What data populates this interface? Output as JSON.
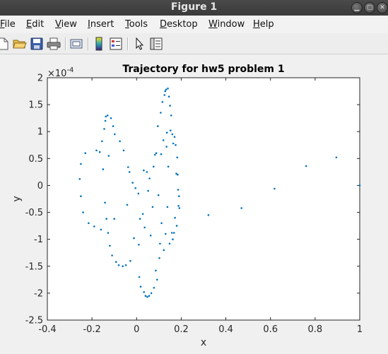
{
  "window": {
    "title": "Figure 1"
  },
  "menu": {
    "items": [
      {
        "key": "F",
        "rest": "ile"
      },
      {
        "key": "E",
        "rest": "dit"
      },
      {
        "key": "V",
        "rest": "iew"
      },
      {
        "key": "I",
        "rest": "nsert"
      },
      {
        "key": "T",
        "rest": "ools"
      },
      {
        "key": "D",
        "rest": "esktop"
      },
      {
        "key": "W",
        "rest": "indow"
      },
      {
        "key": "H",
        "rest": "elp"
      }
    ]
  },
  "toolbar": {
    "icons": [
      "new-figure-icon",
      "open-file-icon",
      "save-icon",
      "print-icon",
      "link-plot-icon",
      "insert-colorbar-icon",
      "insert-legend-icon",
      "edit-plot-arrow-icon",
      "property-inspector-icon"
    ]
  },
  "colors": {
    "marker": "#0072bd",
    "axis": "#262626",
    "plot_bg": "#ffffff",
    "figure_bg": "#f0f0f0"
  },
  "chart_data": {
    "type": "scatter",
    "title": "Trajectory for hw5 problem 1",
    "xlabel": "x",
    "ylabel": "y",
    "xlim": [
      -0.4,
      1.0
    ],
    "ylim": [
      -2.5,
      2.0
    ],
    "y_exponent_label": "×10",
    "y_exponent": "-4",
    "xticks": [
      "-0.4",
      "-0.2",
      "0",
      "0.2",
      "0.4",
      "0.6",
      "0.8",
      "1"
    ],
    "xtick_values": [
      -0.4,
      -0.2,
      0,
      0.2,
      0.4,
      0.6,
      0.8,
      1.0
    ],
    "yticks": [
      "-2.5",
      "-2",
      "-1.5",
      "-1",
      "-0.5",
      "0",
      "0.5",
      "1",
      "1.5",
      "2"
    ],
    "ytick_values": [
      -2.5,
      -2,
      -1.5,
      -1,
      -0.5,
      0,
      0.5,
      1,
      1.5,
      2
    ],
    "grid": false,
    "points": [
      [
        -0.255,
        0.12
      ],
      [
        -0.25,
        0.4
      ],
      [
        -0.25,
        -0.2
      ],
      [
        -0.24,
        -0.5
      ],
      [
        -0.23,
        0.6
      ],
      [
        -0.215,
        -0.7
      ],
      [
        -0.19,
        -0.76
      ],
      [
        -0.18,
        0.65
      ],
      [
        -0.165,
        0.62
      ],
      [
        -0.16,
        -0.82
      ],
      [
        -0.155,
        0.82
      ],
      [
        -0.15,
        0.3
      ],
      [
        -0.145,
        1.05
      ],
      [
        -0.142,
        -0.32
      ],
      [
        -0.14,
        1.2
      ],
      [
        -0.138,
        1.28
      ],
      [
        -0.135,
        -0.62
      ],
      [
        -0.13,
        1.3
      ],
      [
        -0.128,
        -0.88
      ],
      [
        -0.125,
        0.55
      ],
      [
        -0.12,
        -1.12
      ],
      [
        -0.115,
        1.25
      ],
      [
        -0.11,
        -1.3
      ],
      [
        -0.105,
        1.1
      ],
      [
        -0.1,
        -0.62
      ],
      [
        -0.098,
        0.95
      ],
      [
        -0.092,
        -1.42
      ],
      [
        -0.08,
        -1.48
      ],
      [
        -0.075,
        0.82
      ],
      [
        -0.062,
        -1.5
      ],
      [
        -0.058,
        0.65
      ],
      [
        -0.048,
        -1.48
      ],
      [
        -0.042,
        -0.36
      ],
      [
        -0.038,
        0.34
      ],
      [
        -0.032,
        0.25
      ],
      [
        -0.028,
        -1.4
      ],
      [
        -0.018,
        0.05
      ],
      [
        -0.012,
        -0.98
      ],
      [
        -0.005,
        -0.05
      ],
      [
        0.008,
        -0.15
      ],
      [
        0.01,
        -1.1
      ],
      [
        0.012,
        -1.7
      ],
      [
        0.015,
        -0.62
      ],
      [
        0.018,
        -1.88
      ],
      [
        0.028,
        -0.53
      ],
      [
        0.032,
        0.28
      ],
      [
        0.033,
        -1.98
      ],
      [
        0.036,
        -0.78
      ],
      [
        0.04,
        -2.05
      ],
      [
        0.046,
        0.25
      ],
      [
        0.048,
        -2.07
      ],
      [
        0.052,
        -0.1
      ],
      [
        0.056,
        -2.05
      ],
      [
        0.058,
        0.13
      ],
      [
        0.063,
        -0.93
      ],
      [
        0.066,
        -2.0
      ],
      [
        0.072,
        -0.4
      ],
      [
        0.076,
        0.35
      ],
      [
        0.078,
        -1.9
      ],
      [
        0.082,
        0.57
      ],
      [
        0.086,
        -1.58
      ],
      [
        0.088,
        0.6
      ],
      [
        0.092,
        -1.75
      ],
      [
        0.095,
        1.1
      ],
      [
        0.098,
        -0.18
      ],
      [
        0.102,
        -1.35
      ],
      [
        0.105,
        -1.08
      ],
      [
        0.108,
        1.35
      ],
      [
        0.11,
        0.58
      ],
      [
        0.112,
        -0.7
      ],
      [
        0.116,
        1.55
      ],
      [
        0.12,
        0.84
      ],
      [
        0.122,
        -1.2
      ],
      [
        0.125,
        1.68
      ],
      [
        0.128,
        1.75
      ],
      [
        0.13,
        -0.9
      ],
      [
        0.132,
        1.78
      ],
      [
        0.134,
        0.72
      ],
      [
        0.136,
        0.98
      ],
      [
        0.138,
        -0.4
      ],
      [
        0.14,
        1.8
      ],
      [
        0.142,
        0.35
      ],
      [
        0.145,
        1.65
      ],
      [
        0.148,
        -1.08
      ],
      [
        0.15,
        1.48
      ],
      [
        0.152,
        1.02
      ],
      [
        0.155,
        1.3
      ],
      [
        0.158,
        -0.88
      ],
      [
        0.16,
        0.95
      ],
      [
        0.162,
        -1.0
      ],
      [
        0.164,
        0.78
      ],
      [
        0.168,
        -0.88
      ],
      [
        0.17,
        0.9
      ],
      [
        0.172,
        -0.6
      ],
      [
        0.175,
        0.75
      ],
      [
        0.178,
        0.22
      ],
      [
        0.18,
        -0.75
      ],
      [
        0.182,
        0.52
      ],
      [
        0.184,
        0.2
      ],
      [
        0.186,
        -0.08
      ],
      [
        0.188,
        -0.38
      ],
      [
        0.19,
        -0.2
      ],
      [
        0.192,
        -0.42
      ],
      [
        0.322,
        -0.55
      ],
      [
        0.47,
        -0.42
      ],
      [
        0.618,
        -0.06
      ],
      [
        0.76,
        0.36
      ],
      [
        0.895,
        0.52
      ],
      [
        1.0,
        0.0
      ]
    ]
  }
}
